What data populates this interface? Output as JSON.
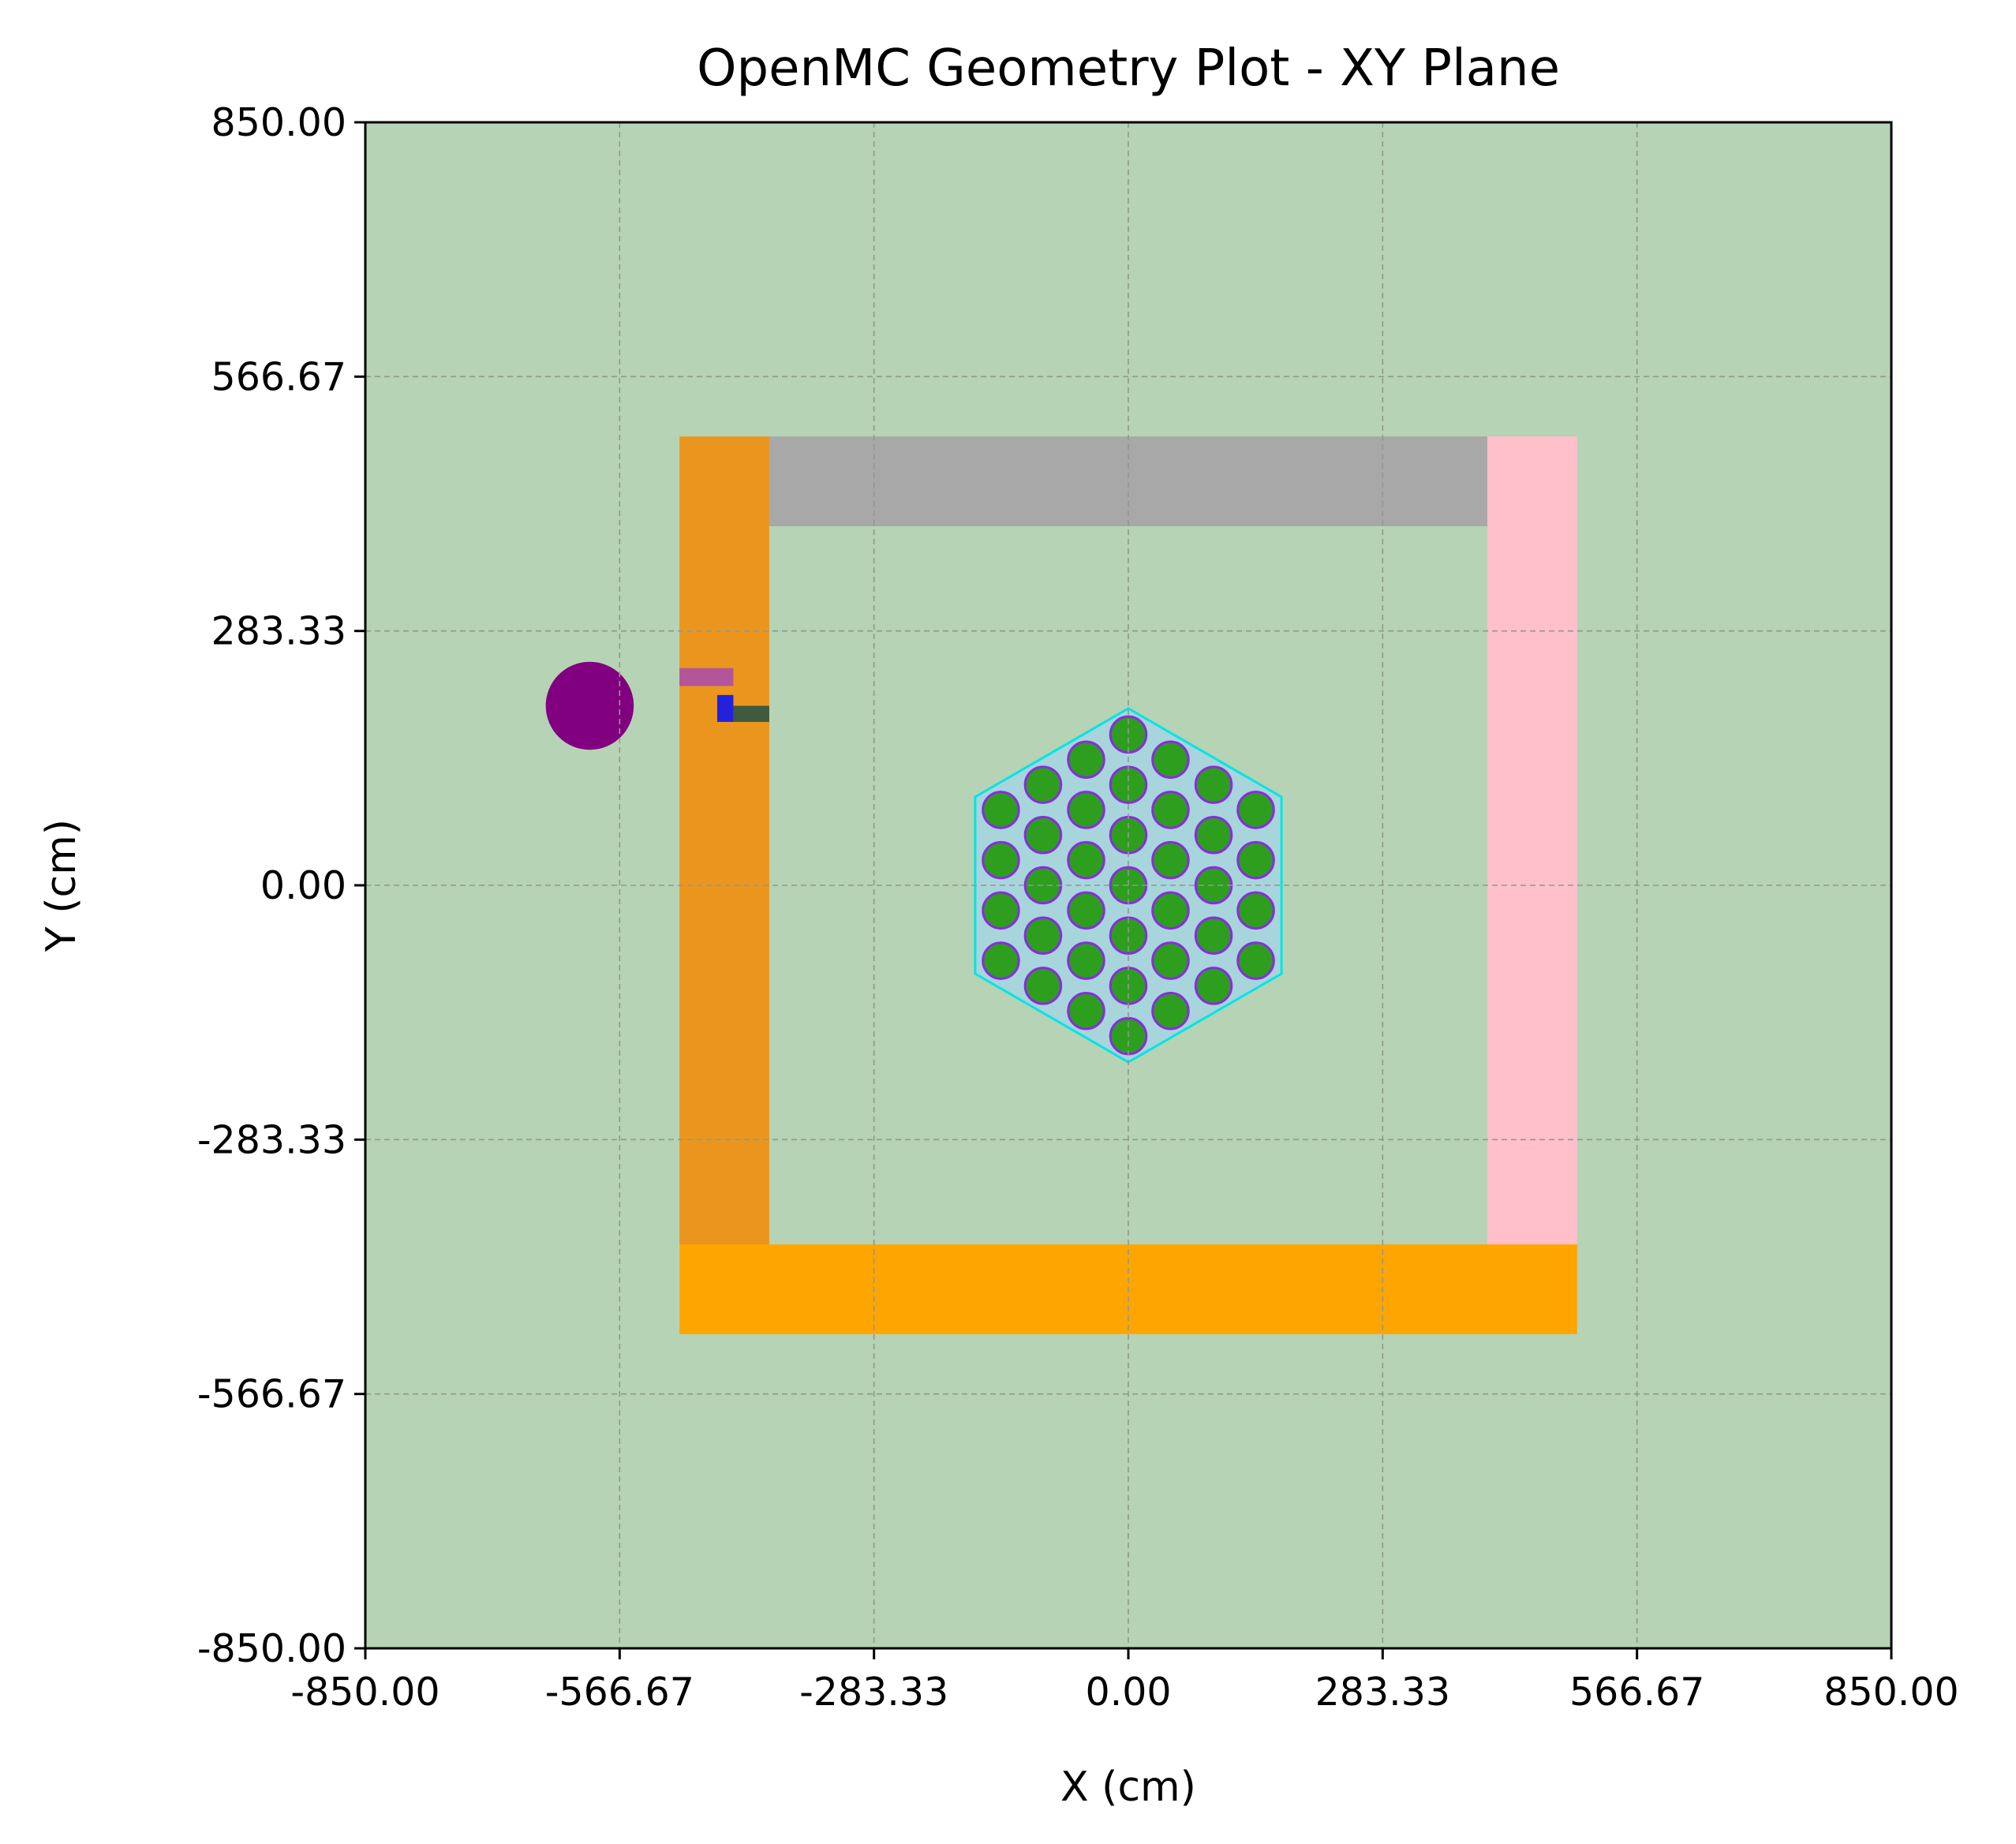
{
  "chart_data": {
    "type": "heatmap",
    "title": "OpenMC Geometry Plot - XY Plane",
    "xlabel": "X (cm)",
    "ylabel": "Y (cm)",
    "xlim": [
      -850,
      850
    ],
    "ylim": [
      -850,
      850
    ],
    "x_ticks": [
      -850,
      -566.67,
      -283.33,
      0,
      283.33,
      566.67,
      850
    ],
    "y_ticks": [
      -850,
      -566.67,
      -283.33,
      0,
      283.33,
      566.67,
      850
    ],
    "x_tick_labels": [
      "-850.00",
      "-566.67",
      "-283.33",
      "0.00",
      "283.33",
      "566.67",
      "850.00"
    ],
    "y_tick_labels": [
      "-850.00",
      "-566.67",
      "-283.33",
      "0.00",
      "283.33",
      "566.67",
      "850.00"
    ],
    "grid": true,
    "background_color": "#b6d3b5",
    "regions": [
      {
        "shape": "rect",
        "x": [
          -500,
          -400
        ],
        "y": [
          -400,
          500
        ],
        "color": "#ea961e"
      },
      {
        "shape": "rect",
        "x": [
          -400,
          400
        ],
        "y": [
          400,
          500
        ],
        "color": "#a8a8a8"
      },
      {
        "shape": "rect",
        "x": [
          400,
          500
        ],
        "y": [
          -400,
          500
        ],
        "color": "#ffc0cb"
      },
      {
        "shape": "rect",
        "x": [
          -500,
          500
        ],
        "y": [
          -500,
          -400
        ],
        "color": "#ffa500"
      },
      {
        "shape": "rect",
        "x": [
          -500,
          -440
        ],
        "y": [
          222,
          242
        ],
        "color": "#b4559a"
      },
      {
        "shape": "rect",
        "x": [
          -458,
          -440
        ],
        "y": [
          182,
          212
        ],
        "color": "#2222dd"
      },
      {
        "shape": "rect",
        "x": [
          -440,
          -400
        ],
        "y": [
          182,
          200
        ],
        "color": "#3f5a3f"
      },
      {
        "shape": "circle",
        "cx": -600,
        "cy": 200,
        "r": 49,
        "color": "#800080"
      }
    ],
    "hexagon": {
      "center": [
        0,
        0
      ],
      "circumradius": 197,
      "fill": "#a8d4dc",
      "edge": "#00e5e5"
    },
    "pins": {
      "radius": 20,
      "fill": "#2e9e1e",
      "edge": "#8a2be2",
      "centers": [
        [
          0,
          168
        ],
        [
          -47,
          140
        ],
        [
          47,
          140
        ],
        [
          0,
          112
        ],
        [
          -95,
          112
        ],
        [
          95,
          112
        ],
        [
          -47,
          84
        ],
        [
          47,
          84
        ],
        [
          -142,
          84
        ],
        [
          142,
          84
        ],
        [
          0,
          56
        ],
        [
          -95,
          56
        ],
        [
          95,
          56
        ],
        [
          -47,
          28
        ],
        [
          47,
          28
        ],
        [
          -142,
          28
        ],
        [
          142,
          28
        ],
        [
          0,
          0
        ],
        [
          -95,
          0
        ],
        [
          95,
          0
        ],
        [
          -47,
          -28
        ],
        [
          47,
          -28
        ],
        [
          -142,
          -28
        ],
        [
          142,
          -28
        ],
        [
          0,
          -56
        ],
        [
          -95,
          -56
        ],
        [
          95,
          -56
        ],
        [
          -47,
          -84
        ],
        [
          47,
          -84
        ],
        [
          -142,
          -84
        ],
        [
          142,
          -84
        ],
        [
          0,
          -112
        ],
        [
          -95,
          -112
        ],
        [
          95,
          -112
        ],
        [
          -47,
          -140
        ],
        [
          47,
          -140
        ],
        [
          0,
          -168
        ]
      ]
    }
  }
}
